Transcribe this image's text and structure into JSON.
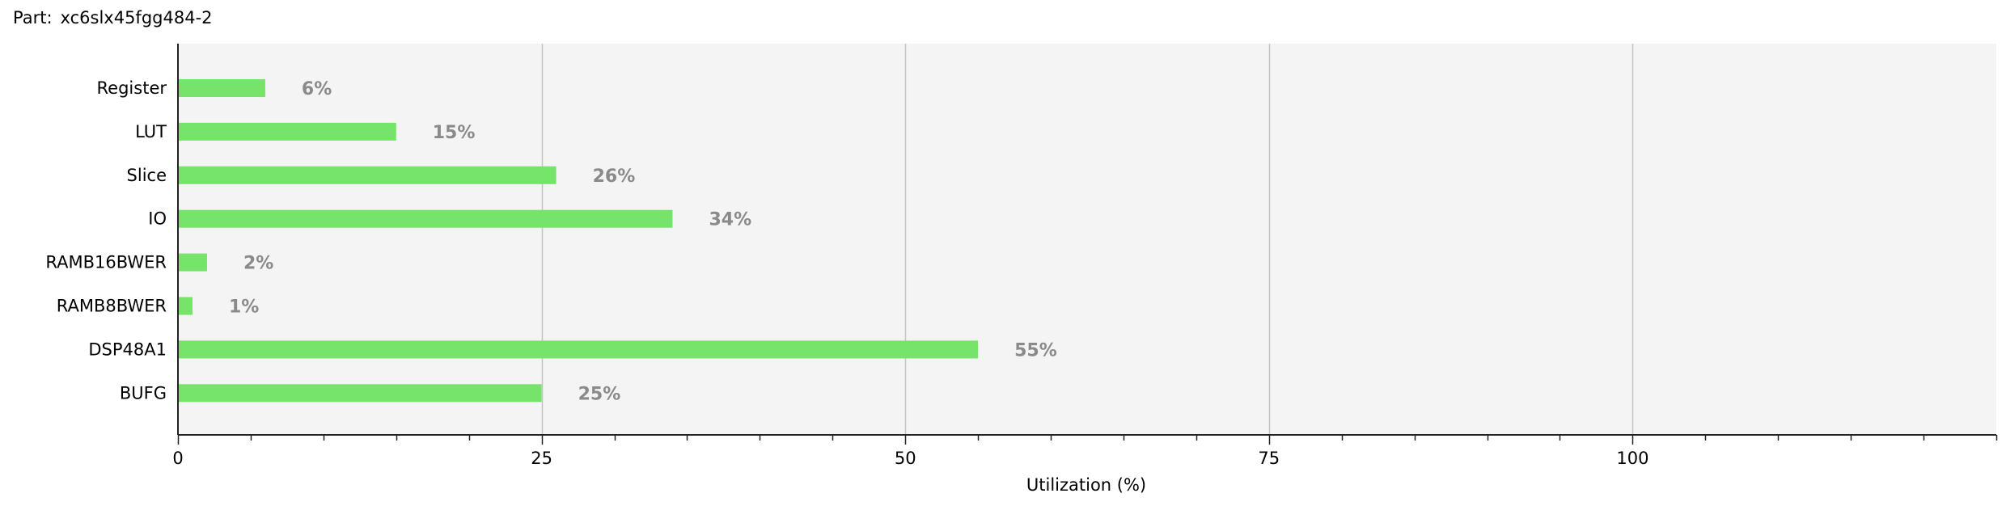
{
  "header": {
    "part_label": "Part:",
    "part_value": "xc6slx45fgg484-2"
  },
  "colors": {
    "bar": "#76e36a",
    "plot_background": "#f4f4f4",
    "gridline": "#c4c4c4",
    "value_label": "#8a8a8a"
  },
  "chart_data": {
    "type": "bar",
    "orientation": "horizontal",
    "categories": [
      "Register",
      "LUT",
      "Slice",
      "IO",
      "RAMB16BWER",
      "RAMB8BWER",
      "DSP48A1",
      "BUFG"
    ],
    "values": [
      6,
      15,
      26,
      34,
      2,
      1,
      55,
      25
    ],
    "value_labels": [
      "6%",
      "15%",
      "26%",
      "34%",
      "2%",
      "1%",
      "55%",
      "25%"
    ],
    "xlabel": "Utilization (%)",
    "ylabel": "",
    "xlim": [
      0,
      125
    ],
    "major_ticks": [
      0,
      25,
      50,
      75,
      100
    ],
    "minor_tick_step": 5,
    "grid": true,
    "legend": "none"
  }
}
